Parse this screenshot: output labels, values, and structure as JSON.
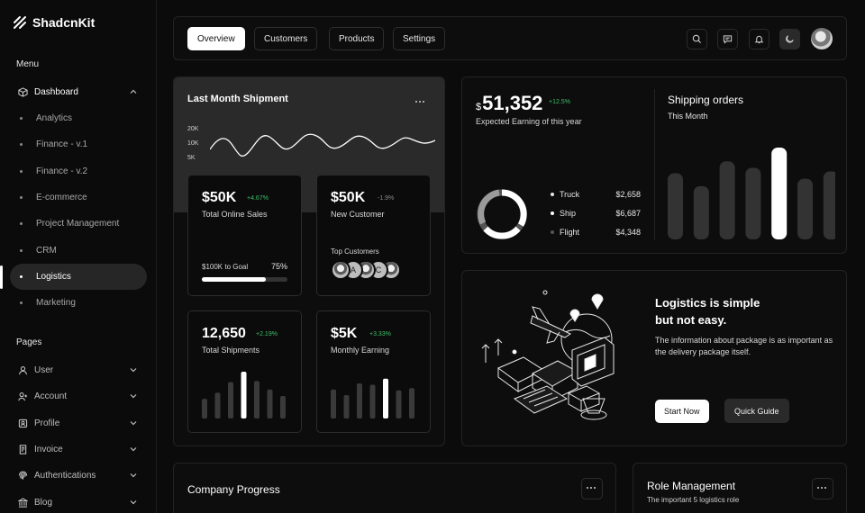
{
  "brand": {
    "name": "ShadcnKit"
  },
  "sidebar": {
    "menu_label": "Menu",
    "dashboard": {
      "label": "Dashboard"
    },
    "sub_items": [
      "Analytics",
      "Finance - v.1",
      "Finance - v.2",
      "E-commerce",
      "Project Management",
      "CRM",
      "Logistics",
      "Marketing"
    ],
    "active_sub": "Logistics",
    "pages_label": "Pages",
    "pages": [
      "User",
      "Account",
      "Profile",
      "Invoice",
      "Authentications",
      "Blog"
    ]
  },
  "topbar": {
    "tabs": [
      "Overview",
      "Customers",
      "Products",
      "Settings"
    ],
    "active_tab": "Overview"
  },
  "shipment": {
    "title": "Last Month Shipment",
    "y_ticks": [
      "20K",
      "10K",
      "5K"
    ],
    "online_sales": {
      "value": "$50K",
      "change": "+4.67%",
      "label": "Total Online Sales",
      "goal_label": "$100K to Goal",
      "goal_pct": "75%",
      "goal_fraction": 0.75
    },
    "new_customer": {
      "value": "$50K",
      "change": "-1.9%",
      "label": "New Customer",
      "top_label": "Top Customers",
      "avatars": [
        "",
        "A",
        "",
        "C",
        ""
      ]
    },
    "total_shipments": {
      "value": "12,650",
      "change": "+2.19%",
      "label": "Total Shipments",
      "bars": [
        0.42,
        0.55,
        0.78,
        1.0,
        0.8,
        0.62,
        0.48
      ],
      "highlight": 3
    },
    "monthly_earning": {
      "value": "$5K",
      "change": "+3.33%",
      "label": "Monthly Earning",
      "bars": [
        0.62,
        0.5,
        0.75,
        0.72,
        0.85,
        0.6,
        0.65
      ],
      "highlight": 4
    }
  },
  "earnings": {
    "currency": "$",
    "value": "51,352",
    "change": "+12.5%",
    "label": "Expected Earning of this year",
    "legend": [
      {
        "name": "Truck",
        "value": "$2,658",
        "color": "#e6e6e6"
      },
      {
        "name": "Ship",
        "value": "$6,687",
        "color": "#ffffff"
      },
      {
        "name": "Flight",
        "value": "$4,348",
        "color": "#555555"
      }
    ],
    "shipping_title": "Shipping orders",
    "shipping_sub": "This Month",
    "shipping_bars": [
      0.72,
      0.58,
      0.85,
      0.78,
      1.0,
      0.66,
      0.74
    ],
    "shipping_highlight": 4
  },
  "logistics": {
    "title_line1": "Logistics is simple",
    "title_line2": "but not easy.",
    "text": "The information about package is as important as the delivery package itself.",
    "primary_btn": "Start Now",
    "secondary_btn": "Quick Guide"
  },
  "company_progress": {
    "title": "Company Progress"
  },
  "role_management": {
    "title": "Role Management",
    "subtitle": "The important 5 logistics role"
  }
}
